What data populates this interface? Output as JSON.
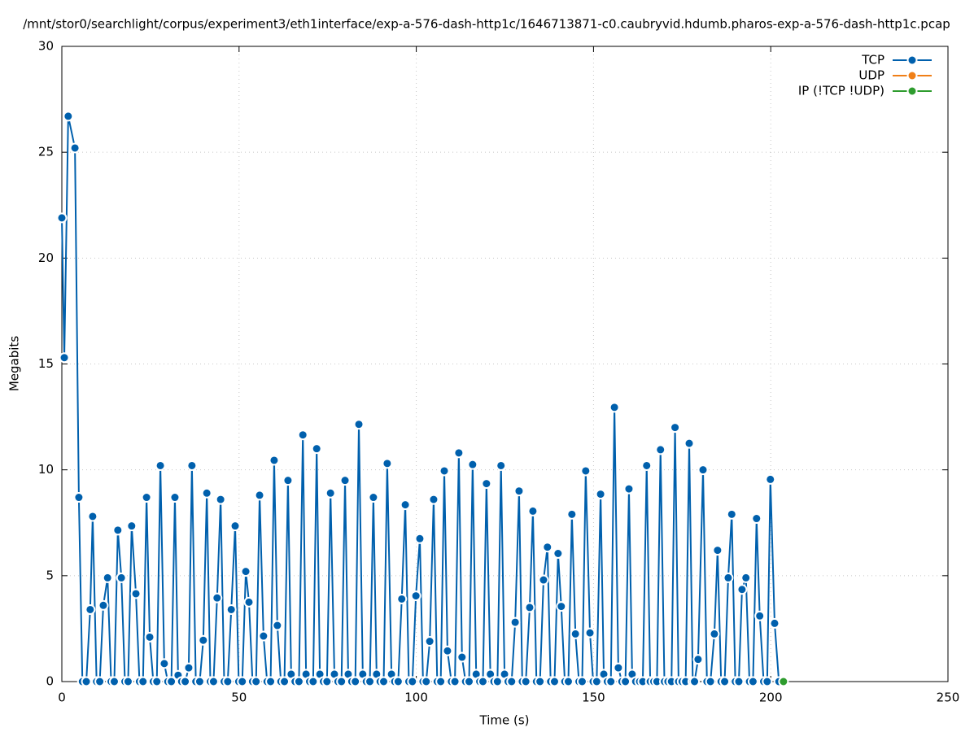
{
  "chart_data": {
    "type": "line",
    "title": "/mnt/stor0/searchlight/corpus/experiment3/eth1interface/exp-a-576-dash-http1c/1646713871-c0.caubryvid.hdumb.pharos-exp-a-576-dash-http1c.pcap",
    "x_label": "Time (s)",
    "y_label": "Megabits",
    "xlim": [
      0,
      250
    ],
    "ylim": [
      0,
      30
    ],
    "xticks": [
      0,
      50,
      100,
      150,
      200,
      250
    ],
    "yticks": [
      0,
      5,
      10,
      15,
      20,
      25,
      30
    ],
    "grid": true,
    "legend": "top right",
    "series": [
      {
        "name": "TCP",
        "color": "#0060ad",
        "x": [
          0,
          0.7,
          1.8,
          3.7,
          4.8,
          5.8,
          6.9,
          8,
          8.7,
          9.8,
          10.7,
          11.7,
          12.9,
          13.9,
          14.8,
          15.8,
          16.8,
          17.8,
          18.7,
          19.7,
          20.9,
          21.9,
          22.9,
          23.9,
          24.8,
          25.8,
          26.8,
          27.8,
          28.9,
          29.9,
          30.9,
          31.9,
          32.8,
          33.8,
          34.8,
          35.8,
          36.7,
          37.8,
          38.9,
          39.9,
          40.9,
          41.9,
          42.8,
          43.8,
          44.8,
          45.8,
          46.8,
          47.8,
          48.9,
          49.9,
          50.9,
          51.9,
          52.8,
          53.8,
          54.8,
          55.8,
          56.9,
          57.9,
          58.9,
          59.9,
          60.8,
          61.8,
          62.8,
          63.8,
          64.7,
          65.8,
          66.9,
          68,
          68.9,
          69.9,
          70.9,
          71.9,
          72.8,
          73.8,
          74.8,
          75.8,
          76.9,
          77.9,
          78.9,
          79.9,
          80.8,
          81.8,
          82.8,
          83.8,
          84.9,
          85.9,
          86.9,
          87.9,
          88.8,
          89.8,
          90.8,
          91.8,
          93,
          93.9,
          94.9,
          95.9,
          96.9,
          97.9,
          98.9,
          99.9,
          101,
          101.9,
          102.8,
          103.8,
          104.9,
          105.9,
          106.9,
          107.9,
          108.8,
          109.9,
          110.9,
          112,
          112.9,
          113.9,
          114.9,
          115.9,
          116.9,
          117.9,
          118.8,
          119.8,
          120.9,
          121.9,
          122.9,
          123.9,
          124.9,
          125.9,
          126.9,
          127.9,
          129,
          129.9,
          130.9,
          132,
          132.9,
          133.9,
          134.9,
          135.9,
          137,
          137.9,
          139,
          140,
          140.9,
          141.9,
          142.9,
          143.9,
          144.9,
          145.9,
          146.8,
          147.8,
          149,
          149.9,
          150.9,
          152,
          152.9,
          153.9,
          154.9,
          155.9,
          157,
          158,
          159,
          160,
          160.9,
          161.9,
          163,
          163.9,
          165,
          166,
          167,
          167.9,
          168.9,
          170,
          171,
          172,
          173,
          174,
          175,
          176,
          177,
          178,
          178.5,
          179.5,
          180.9,
          182,
          183,
          184.1,
          185,
          186,
          187,
          188,
          189,
          190,
          191,
          191.9,
          193,
          194,
          195,
          196,
          196.9,
          198,
          199,
          199.9,
          201.1,
          202.3
        ],
        "values": [
          21.9,
          15.3,
          26.7,
          25.2,
          8.7,
          0,
          0,
          3.4,
          7.8,
          0,
          0,
          3.6,
          4.9,
          0,
          0,
          7.15,
          4.9,
          0,
          0,
          7.35,
          4.15,
          0,
          0,
          8.7,
          2.1,
          0,
          0,
          10.2,
          0.85,
          0,
          0,
          8.7,
          0.3,
          0,
          0,
          0.65,
          10.2,
          0,
          0,
          1.95,
          8.9,
          0,
          0,
          3.95,
          8.6,
          0,
          0,
          3.4,
          7.35,
          0,
          0,
          5.2,
          3.75,
          0,
          0,
          8.8,
          2.15,
          0,
          0,
          10.45,
          2.65,
          0,
          0,
          9.5,
          0.35,
          0,
          0,
          11.65,
          0.35,
          0,
          0,
          11,
          0.35,
          0,
          0,
          8.9,
          0.35,
          0,
          0,
          9.5,
          0.35,
          0,
          0,
          12.15,
          0.35,
          0,
          0,
          8.7,
          0.35,
          0,
          0,
          10.3,
          0.35,
          0,
          0,
          3.9,
          8.35,
          0,
          0,
          4.05,
          6.75,
          0,
          0,
          1.9,
          8.6,
          0,
          0,
          9.95,
          1.45,
          0,
          0,
          10.8,
          1.15,
          0,
          0,
          10.25,
          0.35,
          0,
          0,
          9.35,
          0.35,
          0,
          0,
          10.2,
          0.35,
          0,
          0,
          2.8,
          9,
          0,
          0,
          3.5,
          8.05,
          0,
          0,
          4.8,
          6.35,
          0,
          0,
          6.05,
          3.55,
          0,
          0,
          7.9,
          2.25,
          0,
          0,
          9.95,
          2.3,
          0,
          0,
          8.85,
          0.35,
          0,
          0,
          12.95,
          0.65,
          0,
          0,
          9.1,
          0.35,
          0,
          0,
          0,
          10.2,
          0,
          0,
          0,
          10.95,
          0,
          0,
          0,
          12,
          0,
          0,
          0,
          11.25,
          0,
          0,
          1.05,
          10,
          0,
          0,
          2.25,
          6.2,
          0,
          0,
          4.9,
          7.9,
          0,
          0,
          4.35,
          4.9,
          0,
          0,
          7.7,
          3.1,
          0,
          0,
          9.55,
          2.75,
          0
        ]
      },
      {
        "name": "UDP",
        "color": "#f07f17",
        "x": [],
        "values": []
      },
      {
        "name": "IP (!TCP  !UDP)",
        "color": "#2e9c2e",
        "x": [
          203.6
        ],
        "values": [
          0
        ]
      }
    ]
  }
}
